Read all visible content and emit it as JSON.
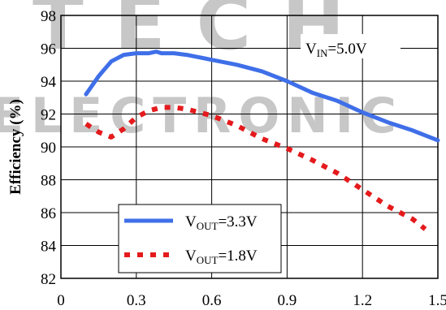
{
  "chart_data": {
    "type": "line",
    "xlabel": "",
    "ylabel": "Efficiency (%)",
    "xlim": [
      0,
      1.5
    ],
    "ylim": [
      82,
      98
    ],
    "xticks": [
      0,
      0.3,
      0.6,
      0.9,
      1.2,
      1.5
    ],
    "xtick_labels": [
      "0",
      "0.3",
      "0.6",
      "0.9",
      "1.2",
      "1.5"
    ],
    "yticks": [
      82,
      84,
      86,
      88,
      90,
      92,
      94,
      96,
      98
    ],
    "ytick_labels": [
      "82",
      "84",
      "86",
      "88",
      "90",
      "92",
      "94",
      "96",
      "98"
    ],
    "grid": true,
    "annotation": {
      "main": "V",
      "sub": "IN",
      "tail": "=5.0V"
    },
    "legend_position": "bottom-left",
    "watermark": [
      "TECH",
      "ELECTRONIC"
    ],
    "series": [
      {
        "name": "VOUT=3.3V",
        "legend": {
          "main": "V",
          "sub": "OUT",
          "tail": "=3.3V"
        },
        "color": "#3f6fe8",
        "style": "solid",
        "x": [
          0.1,
          0.15,
          0.2,
          0.25,
          0.3,
          0.35,
          0.38,
          0.4,
          0.45,
          0.5,
          0.6,
          0.7,
          0.8,
          0.9,
          1.0,
          1.1,
          1.2,
          1.3,
          1.4,
          1.5
        ],
        "y": [
          93.2,
          94.3,
          95.2,
          95.6,
          95.7,
          95.7,
          95.8,
          95.7,
          95.7,
          95.6,
          95.3,
          95.0,
          94.6,
          94.0,
          93.3,
          92.8,
          92.1,
          91.5,
          91.0,
          90.4
        ]
      },
      {
        "name": "VOUT=1.8V",
        "legend": {
          "main": "V",
          "sub": "OUT",
          "tail": "=1.8V"
        },
        "color": "#e41a1c",
        "style": "dotted",
        "x": [
          0.1,
          0.15,
          0.2,
          0.25,
          0.3,
          0.35,
          0.4,
          0.45,
          0.5,
          0.6,
          0.7,
          0.8,
          0.9,
          1.0,
          1.1,
          1.2,
          1.3,
          1.4,
          1.45
        ],
        "y": [
          91.4,
          90.9,
          90.6,
          91.1,
          91.8,
          92.2,
          92.4,
          92.4,
          92.3,
          91.9,
          91.3,
          90.5,
          89.9,
          89.2,
          88.4,
          87.4,
          86.4,
          85.6,
          85.0
        ]
      }
    ]
  }
}
